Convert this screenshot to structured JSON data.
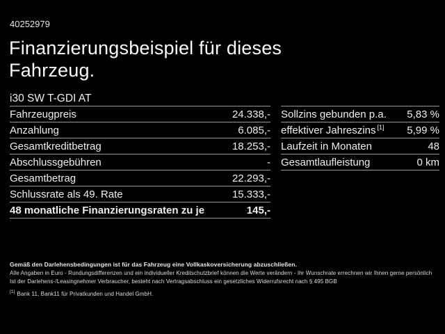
{
  "page": {
    "id_number": "40252979",
    "title_line1": "Finanzierungsbeispiel für dieses",
    "title_line2": "Fahrzeug.",
    "vehicle_model": "i30 SW T-GDI AT"
  },
  "finance_table": {
    "rows": [
      {
        "label": "Fahrzeugpreis",
        "value": "24.338,-"
      },
      {
        "label": "Anzahlung",
        "value": "6.085,-"
      },
      {
        "label": "Gesamtkreditbetrag",
        "value": "18.253,-"
      },
      {
        "label": "Abschlussgebühren",
        "value": "-"
      },
      {
        "label": "Gesamtbetrag",
        "value": "22.293,-"
      },
      {
        "label": "Schlussrate als 49. Rate",
        "value": "15.333,-"
      },
      {
        "label": "48 monatliche Finanzierungsraten zu je",
        "value": "145,-"
      }
    ]
  },
  "conditions_table": {
    "rows": [
      {
        "label": "Sollzins gebunden p.a.",
        "value": "5,83 %"
      },
      {
        "label": "effektiver Jahreszins",
        "footnote_marker": "[1]",
        "value": "5,99 %"
      },
      {
        "label": "Laufzeit in Monaten",
        "value": "48"
      },
      {
        "label": "Gesamtlaufleistung",
        "value": "0 km"
      }
    ]
  },
  "footer": {
    "line_bold": "Gemäß den Darlehensbedingungen ist für das Fahrzeug eine Vollkaskoversicherung abzuschließen.",
    "line2": "Alle Angaben in Euro - Rundungsdifferenzen und ein individueller Kreditschutzbrief können die Werte verändern - Ihr Wunschrate errechnen wir Ihnen gerne persönlich",
    "line3": "Ist der Darlehens-/Leasingnehmer Verbraucher, besteht nach Vertragsabschluss ein gesetzliches Widerrufsrecht nach § 495 BGB",
    "footnote_marker": "[1]",
    "footnote_text": "Bank 11, Bank11 für Privatkunden und Handel GmbH."
  },
  "colors": {
    "background": "#000000",
    "text": "#efefef",
    "separator": "#9a9a9a"
  }
}
